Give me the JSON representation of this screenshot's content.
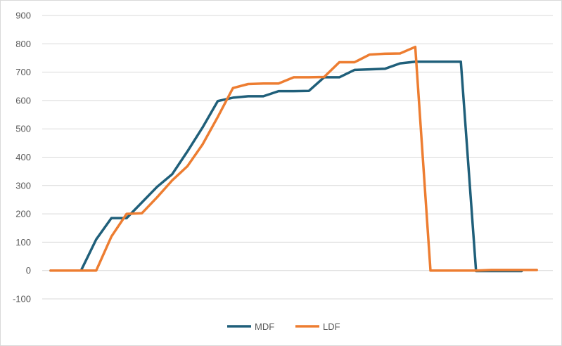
{
  "chart_data": {
    "type": "line",
    "title": "",
    "xlabel": "",
    "ylabel": "",
    "ylim": [
      -100,
      900
    ],
    "yticks": [
      -100,
      0,
      100,
      200,
      300,
      400,
      500,
      600,
      700,
      800,
      900
    ],
    "grid": true,
    "legend": "bottom",
    "series": [
      {
        "name": "MDF",
        "color": "#1f5f7a",
        "values": [
          0,
          0,
          0,
          110,
          185,
          185,
          240,
          295,
          340,
          420,
          505,
          598,
          610,
          615,
          615,
          633,
          633,
          634,
          682,
          682,
          708,
          710,
          712,
          731,
          737,
          737,
          737,
          737,
          -2,
          -2,
          -2,
          -2
        ]
      },
      {
        "name": "LDF",
        "color": "#ed7d31",
        "values": [
          0,
          0,
          0,
          0,
          120,
          200,
          202,
          258,
          318,
          368,
          445,
          542,
          644,
          658,
          660,
          660,
          682,
          682,
          683,
          735,
          735,
          762,
          765,
          766,
          789,
          0,
          0,
          0,
          0,
          2,
          2,
          2,
          2
        ]
      }
    ]
  }
}
